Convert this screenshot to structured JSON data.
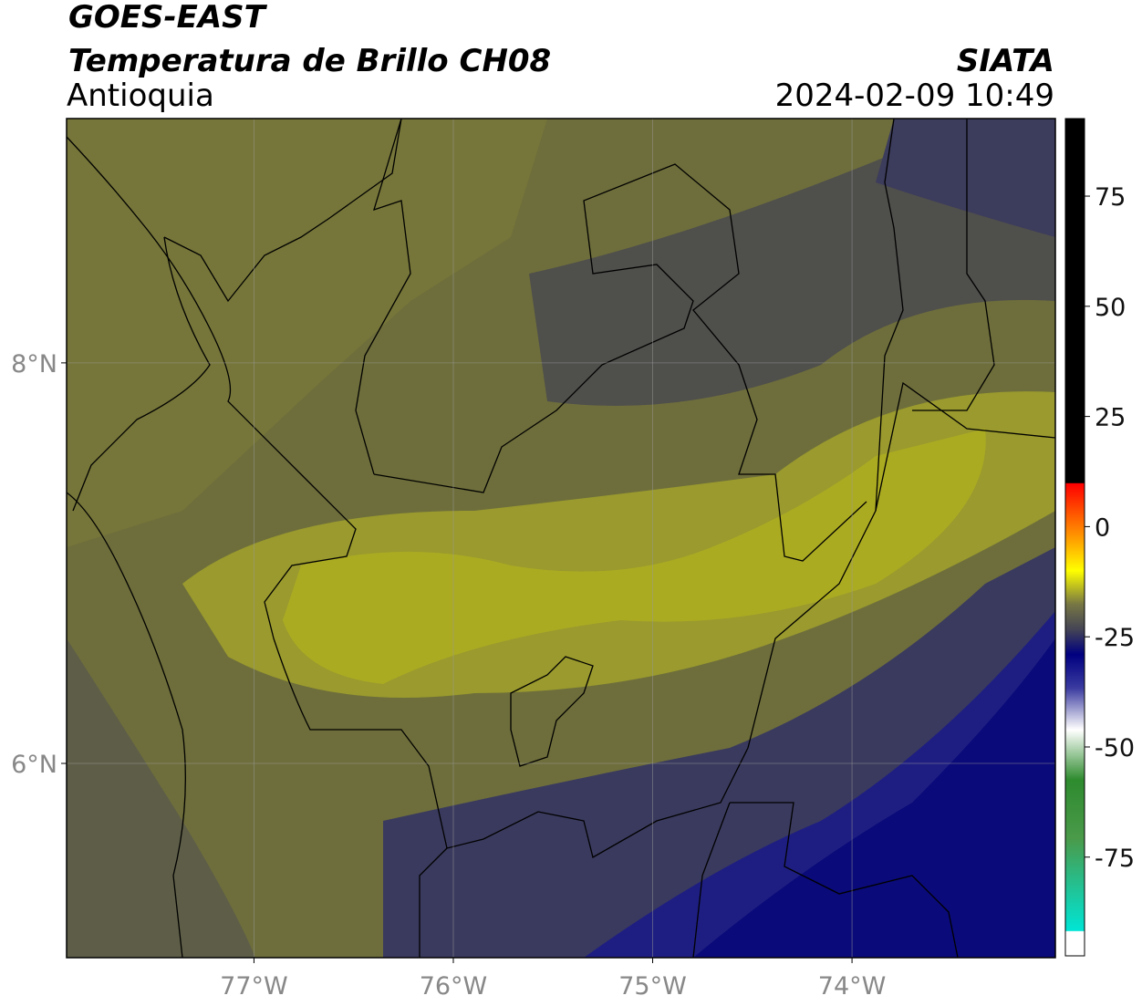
{
  "header": {
    "title": "GOES-EAST",
    "subtitle": "Temperatura de Brillo CH08",
    "region": "Antioquia",
    "source": "SIATA",
    "datetime": "2024-02-09 10:49"
  },
  "map": {
    "xlim": [
      -77.94,
      -72.98
    ],
    "ylim": [
      5.03,
      9.22
    ],
    "xticks": [
      {
        "value": -77,
        "label": "77°W"
      },
      {
        "value": -76,
        "label": "76°W"
      },
      {
        "value": -75,
        "label": "75°W"
      },
      {
        "value": -74,
        "label": "74°W"
      }
    ],
    "yticks": [
      {
        "value": 8,
        "label": "8°N"
      },
      {
        "value": 6,
        "label": "6°N"
      }
    ]
  },
  "colorbar": {
    "lim": [
      -97.4,
      92.6
    ],
    "ticks": [
      75,
      50,
      25,
      0,
      -25,
      -50,
      -75
    ]
  }
}
